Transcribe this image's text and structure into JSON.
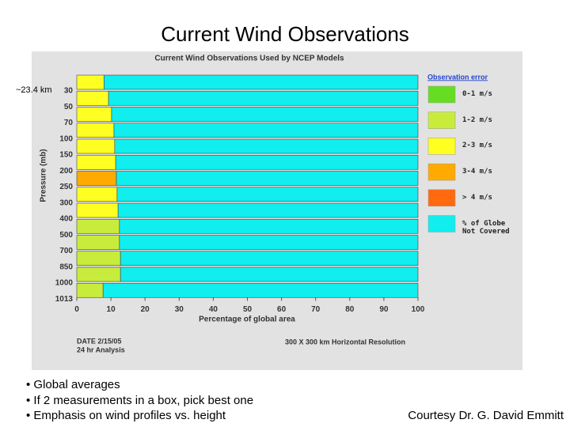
{
  "slide": {
    "title": "Current Wind Observations",
    "scale_note": "~23.4 km",
    "bullets": [
      "• Global averages",
      "• If 2 measurements in a box, pick best one",
      "• Emphasis on wind profiles vs. height"
    ],
    "credit": "Courtesy Dr. G. David Emmitt"
  },
  "chart_data": {
    "type": "bar",
    "orientation": "horizontal",
    "stacked": true,
    "title": "Current Wind Observations Used by NCEP Models",
    "y_label": "Pressure (mb)",
    "x_label": "Percentage of global area",
    "legend_title": "Observation error",
    "categories": [
      "30",
      "50",
      "70",
      "100",
      "150",
      "200",
      "250",
      "300",
      "400",
      "500",
      "700",
      "850",
      "1000",
      "1013"
    ],
    "series": [
      {
        "name": "0-1 m/s",
        "color": "#66dd22",
        "values": [
          null,
          null,
          null,
          null,
          null,
          null,
          null,
          null,
          null,
          null,
          null,
          null,
          null,
          null
        ]
      },
      {
        "name": "1-2 m/s",
        "color": "#c8ec3c",
        "values": [
          null,
          null,
          null,
          null,
          null,
          null,
          null,
          null,
          null,
          12.5,
          12.5,
          12.8,
          12.8,
          7.7
        ]
      },
      {
        "name": "2-3 m/s",
        "color": "#ffff22",
        "values": [
          8,
          9.3,
          10.2,
          10.9,
          11.1,
          11.4,
          null,
          11.8,
          12.1,
          null,
          null,
          null,
          null,
          null
        ]
      },
      {
        "name": "3-4 m/s",
        "color": "#ffaa00",
        "values": [
          null,
          null,
          null,
          null,
          null,
          null,
          11.6,
          null,
          null,
          null,
          null,
          null,
          null,
          null
        ]
      },
      {
        "name": "> 4 m/s",
        "color": "#ff6a11",
        "values": [
          null,
          null,
          null,
          null,
          null,
          null,
          null,
          null,
          null,
          null,
          null,
          null,
          null,
          null
        ]
      },
      {
        "name": "% of Globe Not Covered",
        "color": "#11eeee",
        "values": [
          92,
          90.7,
          89.8,
          89.1,
          88.9,
          88.6,
          88.4,
          88.2,
          87.9,
          87.5,
          87.5,
          87.2,
          87.2,
          92.3
        ]
      }
    ],
    "xlim": [
      0,
      100
    ],
    "xticks": [
      0,
      10,
      20,
      30,
      40,
      50,
      60,
      70,
      80,
      90,
      100
    ],
    "notes": [
      "DATE 2/15/05",
      "24 hr Analysis",
      "300 X 300 km Horizontal Resolution"
    ]
  }
}
